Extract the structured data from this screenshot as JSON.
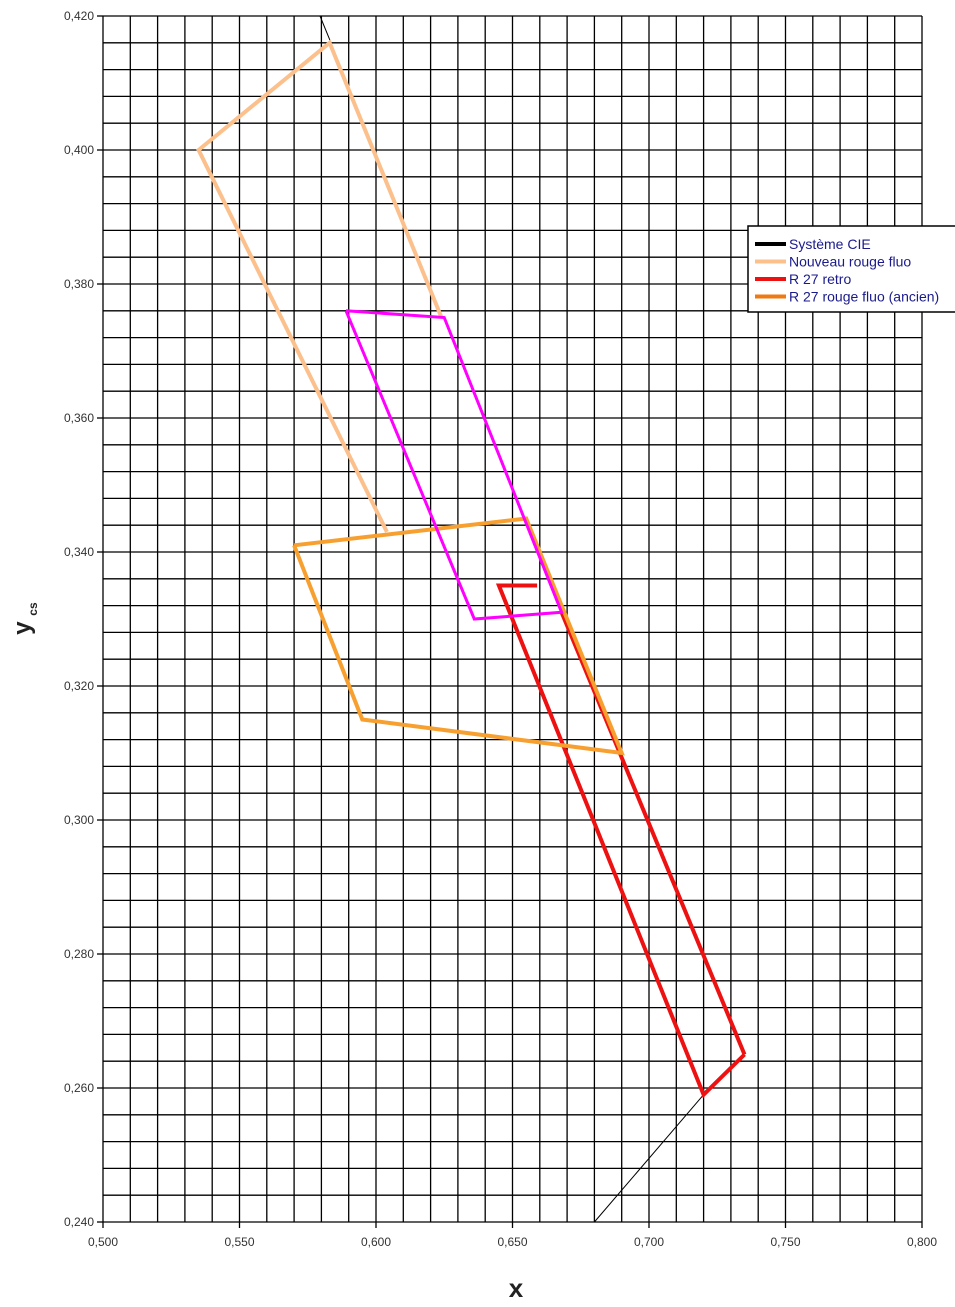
{
  "chart_data": {
    "type": "line",
    "title": "",
    "xlabel": "x",
    "ylabel": "y",
    "ylabel_sub": "cs",
    "xlim": [
      0.5,
      0.8
    ],
    "ylim": [
      0.24,
      0.42
    ],
    "grid": true,
    "grid_minor_x": 0.01,
    "grid_minor_y": 0.004,
    "x_ticks": [
      {
        "v": 0.5,
        "label": "0,500"
      },
      {
        "v": 0.55,
        "label": "0,550"
      },
      {
        "v": 0.6,
        "label": "0,600"
      },
      {
        "v": 0.65,
        "label": "0,650"
      },
      {
        "v": 0.7,
        "label": "0,700"
      },
      {
        "v": 0.75,
        "label": "0,750"
      },
      {
        "v": 0.8,
        "label": "0,800"
      }
    ],
    "y_ticks": [
      {
        "v": 0.24,
        "label": "0,240"
      },
      {
        "v": 0.26,
        "label": "0,260"
      },
      {
        "v": 0.28,
        "label": "0,280"
      },
      {
        "v": 0.3,
        "label": "0,300"
      },
      {
        "v": 0.32,
        "label": "0,320"
      },
      {
        "v": 0.34,
        "label": "0,340"
      },
      {
        "v": 0.36,
        "label": "0,360"
      },
      {
        "v": 0.38,
        "label": "0,380"
      },
      {
        "v": 0.4,
        "label": "0,400"
      },
      {
        "v": 0.42,
        "label": "0,420"
      }
    ],
    "legend_position": "top-right",
    "series": [
      {
        "name": "Système CIE",
        "color": "#000000",
        "width": 1,
        "in_legend": true,
        "x": [
          0.68,
          0.72
        ],
        "y": [
          0.24,
          0.259
        ]
      },
      {
        "name": "Système CIE",
        "color": "#000000",
        "width": 1,
        "in_legend": false,
        "x": [
          0.5795,
          0.5835
        ],
        "y": [
          0.42,
          0.416
        ]
      },
      {
        "name": "Nouveau rouge fluo",
        "color": "#fcc08c",
        "width": 4,
        "in_legend": true,
        "x": [
          0.604,
          0.535,
          0.583,
          0.624
        ],
        "y": [
          0.343,
          0.4,
          0.416,
          0.375
        ]
      },
      {
        "name": "R 27 retro",
        "color": "#ee1111",
        "width": 4,
        "in_legend": true,
        "x": [
          0.659,
          0.645,
          0.72,
          0.735,
          0.72
        ],
        "y": [
          0.335,
          0.335,
          0.259,
          0.265,
          0.259
        ]
      },
      {
        "name": "R 27 retro",
        "color": "#ee1111",
        "width": 4,
        "in_legend": false,
        "x": [
          0.735,
          0.668
        ],
        "y": [
          0.265,
          0.331
        ]
      },
      {
        "name": "R 27 rouge fluo (ancien)",
        "color": "#f7a030",
        "width": 4,
        "in_legend": true,
        "x": [
          0.57,
          0.655,
          0.69,
          0.595,
          0.57
        ],
        "y": [
          0.341,
          0.345,
          0.31,
          0.315,
          0.341
        ]
      },
      {
        "name": "",
        "color": "#ff00ff",
        "width": 3,
        "in_legend": false,
        "x": [
          0.589,
          0.625,
          0.668,
          0.636,
          0.589
        ],
        "y": [
          0.376,
          0.375,
          0.331,
          0.33,
          0.376
        ]
      }
    ],
    "legend": [
      {
        "label": "Système CIE",
        "color": "#000000"
      },
      {
        "label": "Nouveau rouge fluo",
        "color": "#fcc08c"
      },
      {
        "label": "R 27 retro",
        "color": "#ee1111"
      },
      {
        "label": "R 27 rouge fluo (ancien)",
        "color": "#f07a12"
      }
    ]
  }
}
